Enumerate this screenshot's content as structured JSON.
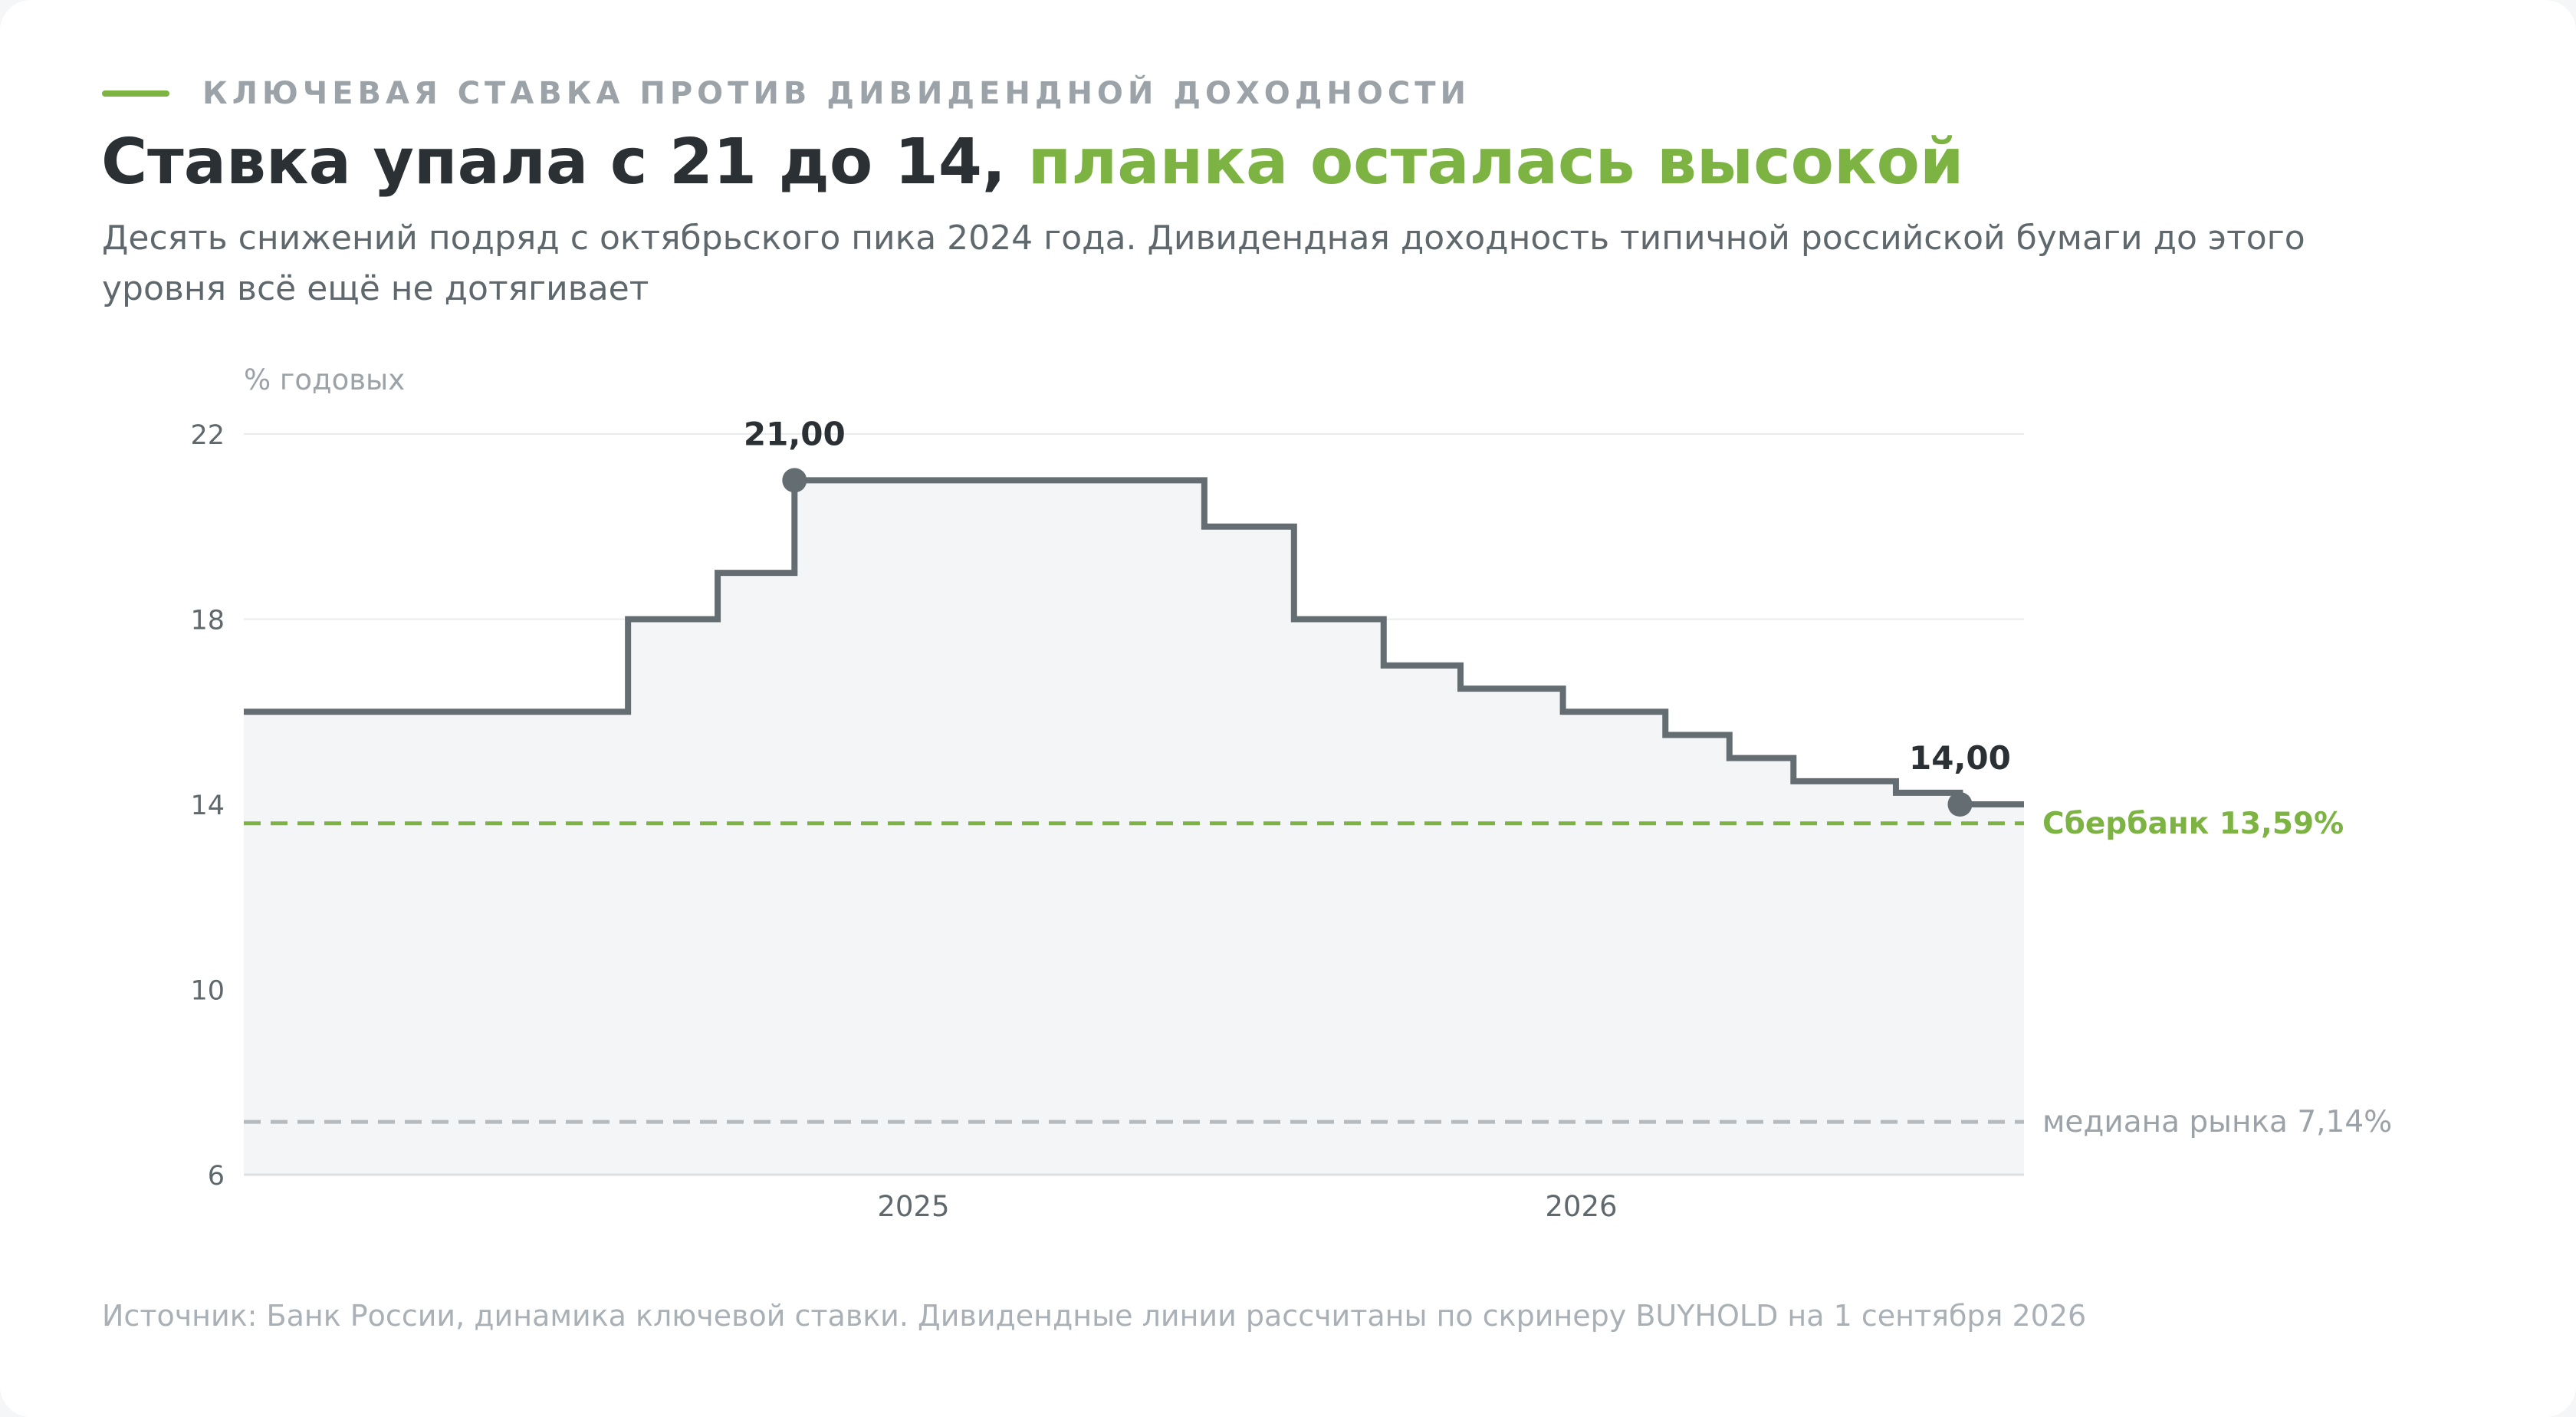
{
  "kicker": "КЛЮЧЕВАЯ СТАВКА ПРОТИВ ДИВИДЕНДНОЙ ДОХОДНОСТИ",
  "headline": {
    "part1": "Ставка упала с 21 до 14, ",
    "part2": "планка осталась высокой"
  },
  "subhead": "Десять снижений подряд с октябрьского пика 2024 года. Дивидендная доходность типичной российской бумаги до этого уровня всё ещё не дотягивает",
  "source": "Источник: Банк России, динамика ключевой ставки. Дивидендные линии рассчитаны по скринеру BUYHOLD на 1 сентября 2026",
  "colors": {
    "accent": "#7cb342",
    "line": "#636d72",
    "area": "#f3f5f7",
    "median": "#b5babe",
    "text_dark": "#2a3033",
    "grid": "#e9ecee"
  },
  "chart_data": {
    "type": "line",
    "step": true,
    "ylabel": "% годовых",
    "ylim": [
      6,
      22
    ],
    "yticks": [
      "22",
      "18",
      "14",
      "10",
      "6"
    ],
    "xlim": [
      "2024-01-01",
      "2026-08-31"
    ],
    "xticks": [
      "2025",
      "2026"
    ],
    "grid": true,
    "series": [
      {
        "x": [
          "2024-01-01",
          "2024-07-29",
          "2024-09-16",
          "2024-10-28",
          "2025-06-09",
          "2025-07-28",
          "2025-09-15",
          "2025-10-27",
          "2025-12-22",
          "2026-02-16",
          "2026-03-23",
          "2026-04-27",
          "2026-06-22",
          "2026-07-27",
          "2026-08-31"
        ],
        "y": [
          16,
          18,
          19,
          21,
          20,
          18,
          17,
          16.5,
          16,
          15.5,
          15,
          14.5,
          14.25,
          14,
          14
        ]
      }
    ],
    "annotations": [
      {
        "x": "2024-10-28",
        "y": 21,
        "label": "21,00"
      },
      {
        "x": "2026-07-27",
        "y": 14,
        "label": "14,00"
      }
    ],
    "reference_lines": [
      {
        "y": 13.59,
        "label": "Сбербанк 13,59%",
        "style": "dashed",
        "role": "accent"
      },
      {
        "y": 7.14,
        "label": "медиана рынка 7,14%",
        "style": "dashed",
        "role": "median"
      }
    ]
  }
}
